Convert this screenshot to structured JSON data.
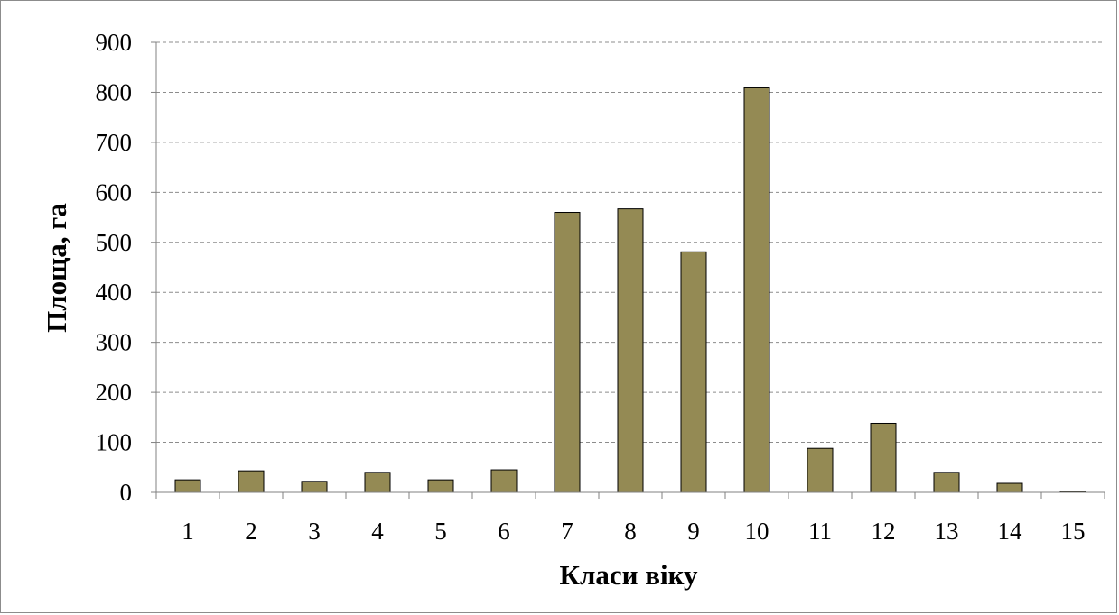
{
  "chart_data": {
    "type": "bar",
    "title": "",
    "xlabel": "Класи віку",
    "ylabel": "Площа, га",
    "categories": [
      "1",
      "2",
      "3",
      "4",
      "5",
      "6",
      "7",
      "8",
      "9",
      "10",
      "11",
      "12",
      "13",
      "14",
      "15"
    ],
    "values": [
      25,
      43,
      22,
      40,
      25,
      45,
      560,
      567,
      481,
      809,
      88,
      138,
      40,
      18,
      2
    ],
    "ylim": [
      0,
      900
    ],
    "yticks": [
      "0",
      "100",
      "200",
      "300",
      "400",
      "500",
      "600",
      "700",
      "800",
      "900"
    ],
    "grid": "horizontal-dashed",
    "legend": "none",
    "colors": {
      "bar_fill": "#948A54",
      "bar_stroke": "#000000",
      "grid": "#8c8c8c",
      "axis": "#808080"
    }
  }
}
